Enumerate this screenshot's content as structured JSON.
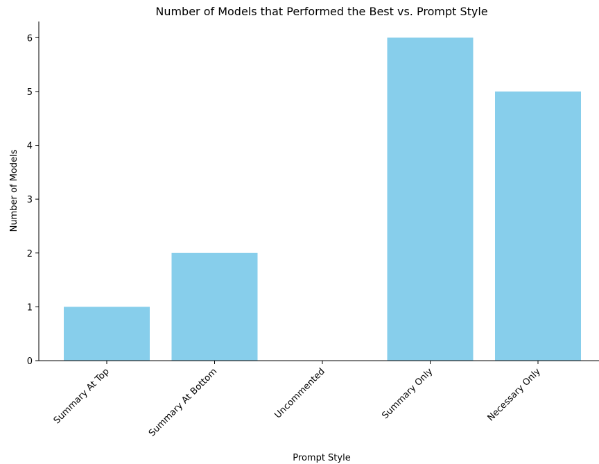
{
  "chart_data": {
    "type": "bar",
    "title": "Number of Models that Performed the Best vs. Prompt Style",
    "xlabel": "Prompt Style",
    "ylabel": "Number of Models",
    "categories": [
      "Summary At Top",
      "Summary At Bottom",
      "Uncommented",
      "Summary Only",
      "Necessary Only"
    ],
    "values": [
      1,
      2,
      0,
      6,
      5
    ],
    "ylim": [
      0,
      6.3
    ],
    "yticks": [
      0,
      1,
      2,
      3,
      4,
      5,
      6
    ],
    "grid": false,
    "bar_color": "#87CEEB"
  }
}
